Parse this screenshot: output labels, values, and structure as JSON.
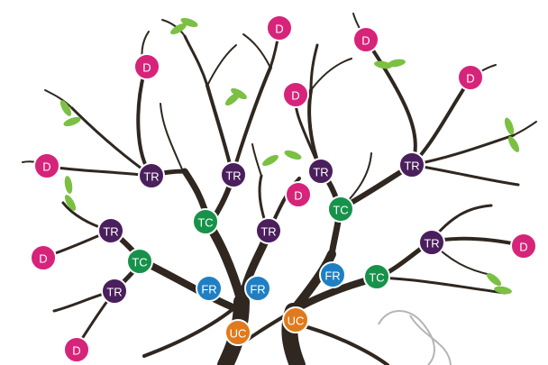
{
  "diagram": {
    "colors": {
      "D": "#d6247a",
      "TR": "#4a1f5c",
      "TC": "#17924a",
      "FR": "#1f7fc4",
      "UC": "#e07a1c",
      "branch": "#2f2720",
      "leaf": "#7bc043",
      "string": "#b5b5b5"
    },
    "nodes": [
      {
        "label": "D",
        "kind": "D"
      },
      {
        "label": "D",
        "kind": "D"
      },
      {
        "label": "D",
        "kind": "D"
      },
      {
        "label": "D",
        "kind": "D"
      },
      {
        "label": "D",
        "kind": "D"
      },
      {
        "label": "D",
        "kind": "D"
      },
      {
        "label": "D",
        "kind": "D"
      },
      {
        "label": "D",
        "kind": "D"
      },
      {
        "label": "D",
        "kind": "D"
      },
      {
        "label": "D",
        "kind": "D"
      },
      {
        "label": "TR",
        "kind": "TR"
      },
      {
        "label": "TR",
        "kind": "TR"
      },
      {
        "label": "TR",
        "kind": "TR"
      },
      {
        "label": "TR",
        "kind": "TR"
      },
      {
        "label": "TR",
        "kind": "TR"
      },
      {
        "label": "TR",
        "kind": "TR"
      },
      {
        "label": "TR",
        "kind": "TR"
      },
      {
        "label": "TR",
        "kind": "TR"
      },
      {
        "label": "TC",
        "kind": "TC"
      },
      {
        "label": "TC",
        "kind": "TC"
      },
      {
        "label": "TC",
        "kind": "TC"
      },
      {
        "label": "TC",
        "kind": "TC"
      },
      {
        "label": "FR",
        "kind": "FR"
      },
      {
        "label": "FR",
        "kind": "FR"
      },
      {
        "label": "FR",
        "kind": "FR"
      },
      {
        "label": "UC",
        "kind": "UC"
      },
      {
        "label": "UC",
        "kind": "UC"
      }
    ]
  }
}
